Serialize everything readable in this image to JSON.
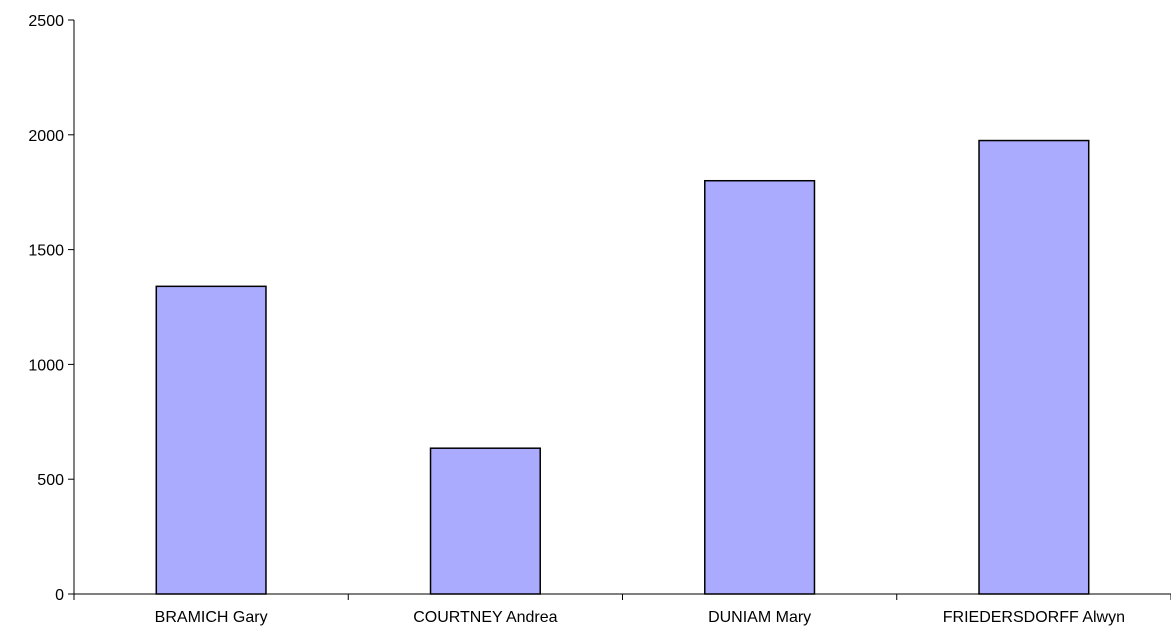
{
  "chart_data": {
    "type": "bar",
    "title": "",
    "xlabel": "",
    "ylabel": "",
    "categories": [
      "BRAMICH Gary",
      "COURTNEY Andrea",
      "DUNIAM Mary",
      "FRIEDERSDORFF Alwyn"
    ],
    "values": [
      1340,
      635,
      1800,
      1975
    ],
    "ylim": [
      0,
      2500
    ],
    "yticks": [
      "0",
      "500",
      "1000",
      "1500",
      "2000",
      "2500"
    ],
    "grid": false,
    "legend": "none",
    "colors": {
      "bar_fill": "#aaaaff",
      "bar_stroke": "#000000",
      "axis": "#000000"
    }
  }
}
